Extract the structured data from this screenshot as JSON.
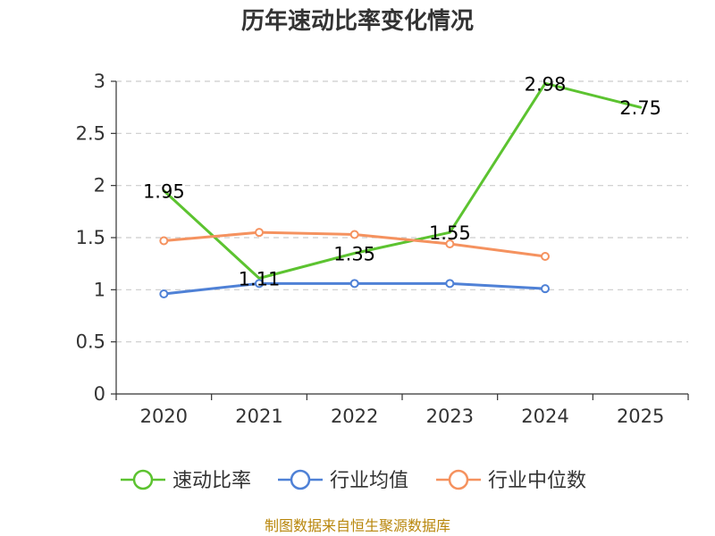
{
  "chart_data": {
    "type": "line",
    "title": "历年速动比率变化情况",
    "categories": [
      "2020",
      "2021",
      "2022",
      "2023",
      "2024",
      "2025"
    ],
    "ylim": [
      0,
      3
    ],
    "yticks": [
      "0",
      "0.5",
      "1",
      "1.5",
      "2",
      "2.5",
      "3"
    ],
    "ytick_values": [
      0,
      0.5,
      1,
      1.5,
      2,
      2.5,
      3
    ],
    "grid": true,
    "legend_position": "bottom",
    "series": [
      {
        "name": "速动比率",
        "color": "#5cc330",
        "values": [
          1.95,
          1.11,
          1.35,
          1.55,
          2.98,
          2.75
        ],
        "labels": [
          "1.95",
          "1.11",
          "1.35",
          "1.55",
          "2.98",
          "2.75"
        ],
        "show_labels": true,
        "show_markers": false
      },
      {
        "name": "行业均值",
        "color": "#4f81d6",
        "values": [
          0.96,
          1.06,
          1.06,
          1.06,
          1.01,
          null
        ],
        "show_labels": false,
        "show_markers": true
      },
      {
        "name": "行业中位数",
        "color": "#f5925f",
        "values": [
          1.47,
          1.55,
          1.53,
          1.44,
          1.32,
          null
        ],
        "show_labels": false,
        "show_markers": true
      }
    ],
    "source": "制图数据来自恒生聚源数据库"
  }
}
